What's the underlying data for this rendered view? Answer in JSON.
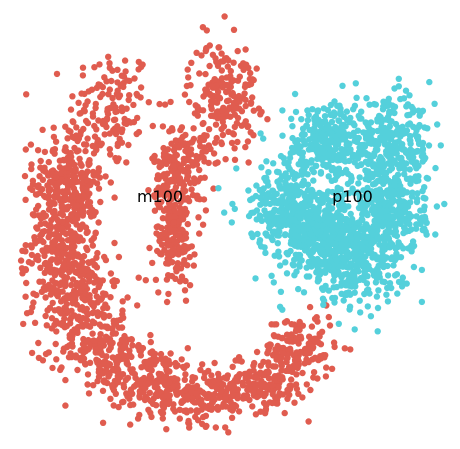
{
  "chart_data": {
    "type": "scatter",
    "title": "",
    "xlabel": "",
    "ylabel": "",
    "xlim": [
      -60,
      60
    ],
    "ylim": [
      -60,
      60
    ],
    "axes_visible": false,
    "grid": false,
    "legend": "none",
    "series": [
      {
        "name": "m100",
        "color": "#e05c4f",
        "approx_point_count": 2200,
        "label_position": [
          -20,
          8
        ],
        "shape": "outer crescent arc with inner vertical lobe",
        "regions": [
          {
            "cx": -34,
            "cy": 34,
            "sx": 6,
            "sy": 9,
            "weight": 0.06
          },
          {
            "cx": -46,
            "cy": 14,
            "sx": 5,
            "sy": 8,
            "weight": 0.1
          },
          {
            "cx": -48,
            "cy": -4,
            "sx": 5,
            "sy": 9,
            "weight": 0.12
          },
          {
            "cx": -44,
            "cy": -22,
            "sx": 6,
            "sy": 8,
            "weight": 0.1
          },
          {
            "cx": -36,
            "cy": -36,
            "sx": 6,
            "sy": 6,
            "weight": 0.08
          },
          {
            "cx": -22,
            "cy": -46,
            "sx": 7,
            "sy": 5,
            "weight": 0.08
          },
          {
            "cx": -6,
            "cy": -50,
            "sx": 7,
            "sy": 4,
            "weight": 0.08
          },
          {
            "cx": 10,
            "cy": -46,
            "sx": 6,
            "sy": 4,
            "weight": 0.07
          },
          {
            "cx": 20,
            "cy": -36,
            "sx": 5,
            "sy": 5,
            "weight": 0.06
          },
          {
            "cx": -2,
            "cy": 38,
            "sx": 5,
            "sy": 8,
            "weight": 0.09
          },
          {
            "cx": -14,
            "cy": 16,
            "sx": 4,
            "sy": 7,
            "weight": 0.09
          },
          {
            "cx": -16,
            "cy": -4,
            "sx": 3,
            "sy": 7,
            "weight": 0.07
          }
        ]
      },
      {
        "name": "p100",
        "color": "#54d0db",
        "approx_point_count": 1800,
        "label_position": [
          35,
          8
        ],
        "shape": "compact right-side cluster",
        "regions": [
          {
            "cx": 28,
            "cy": 24,
            "sx": 6,
            "sy": 6,
            "weight": 0.15
          },
          {
            "cx": 16,
            "cy": 6,
            "sx": 7,
            "sy": 6,
            "weight": 0.15
          },
          {
            "cx": 46,
            "cy": 22,
            "sx": 6,
            "sy": 7,
            "weight": 0.18
          },
          {
            "cx": 34,
            "cy": -10,
            "sx": 8,
            "sy": 6,
            "weight": 0.22
          },
          {
            "cx": 46,
            "cy": 4,
            "sx": 5,
            "sy": 6,
            "weight": 0.15
          },
          {
            "cx": 26,
            "cy": -2,
            "sx": 6,
            "sy": 5,
            "weight": 0.15
          }
        ]
      }
    ]
  }
}
